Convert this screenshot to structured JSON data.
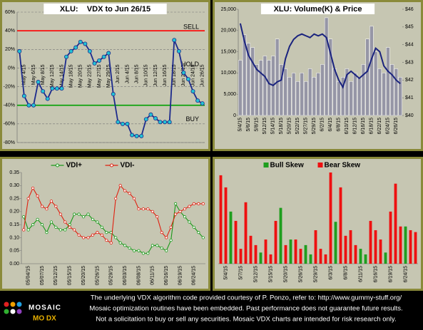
{
  "chart_data": [
    {
      "type": "line",
      "title": "XLU:    VDX to Jun 26/15",
      "categories": [
        null,
        "May 4/15",
        null,
        "May 6/15",
        null,
        "May 8/15",
        null,
        "May 12/15",
        null,
        "May 14/15",
        null,
        "May 18/15",
        null,
        "May 20/15",
        null,
        "May 22/15",
        null,
        "May 27/15",
        null,
        "May 29/15",
        null,
        "Jun 2/15",
        null,
        "Jun 4/15",
        null,
        "Jun 8/15",
        null,
        "Jun 10/15",
        null,
        "Jun 12/15",
        null,
        "Jun 16/15",
        null,
        "Jun 18/15",
        null,
        "Jun 22/15",
        null,
        "Jun 24/15",
        null,
        "Jun 26/15"
      ],
      "series": [
        {
          "name": "VDX",
          "color": "#1c2a8c",
          "marker_color": "#22c4d4",
          "values": [
            18,
            -30,
            -40,
            -40,
            -15,
            -25,
            -33,
            -22,
            -22,
            -22,
            12,
            18,
            22,
            28,
            26,
            18,
            5,
            8,
            12,
            16,
            -28,
            -58,
            -60,
            -60,
            -72,
            -73,
            -73,
            -55,
            -50,
            -54,
            -58,
            -58,
            -58,
            30,
            18,
            -5,
            -12,
            -25,
            -35,
            -38
          ]
        }
      ],
      "ylim": [
        -80,
        60
      ],
      "yticks": [
        {
          "value": -80,
          "label": "-80%"
        },
        {
          "value": -60,
          "label": "-60%"
        },
        {
          "value": -40,
          "label": "-40%"
        },
        {
          "value": -20,
          "label": "-20%"
        },
        {
          "value": 0,
          "label": "0%"
        },
        {
          "value": 20,
          "label": "20%"
        },
        {
          "value": 40,
          "label": "40%"
        },
        {
          "value": 60,
          "label": "60%"
        }
      ],
      "grid": true,
      "annotations": [
        {
          "text": "SELL",
          "value": 40,
          "color": "#ff0000"
        },
        {
          "text": "HOLD",
          "value": 0
        },
        {
          "text": "BUY",
          "value": -40,
          "color": "#00a000"
        }
      ]
    },
    {
      "type": "bar",
      "title": "XLU: Volume(K) & Price",
      "categories": [
        "5/4/15",
        null,
        "5/6/15",
        null,
        "5/8/15",
        null,
        "5/12/15",
        null,
        "5/14/15",
        null,
        "5/18/15",
        null,
        "5/20/15",
        null,
        "5/22/15",
        null,
        "5/27/15",
        null,
        "5/29/15",
        null,
        "6/2/15",
        null,
        "6/4/15",
        null,
        "6/8/15",
        null,
        "6/10/15",
        null,
        "6/12/15",
        null,
        "6/16/15",
        null,
        "6/18/15",
        null,
        "6/22/15",
        null,
        "6/24/15",
        null,
        "6/26/15",
        null
      ],
      "series": [
        {
          "name": "Volume(K)",
          "color": "#9696a6",
          "values": [
            13000,
            19000,
            17000,
            16000,
            12000,
            13000,
            14000,
            13000,
            14000,
            18000,
            12000,
            11000,
            9000,
            10000,
            8000,
            10000,
            8000,
            11000,
            9000,
            10000,
            12000,
            23000,
            18000,
            11000,
            8000,
            9000,
            11000,
            8000,
            10000,
            9000,
            12000,
            18000,
            21000,
            15000,
            11000,
            10000,
            16000,
            12000,
            11000,
            9000
          ]
        },
        {
          "name": "Price",
          "type": "line",
          "axis": "y2",
          "color": "#1a237e",
          "values": [
            45.2,
            44.2,
            43.4,
            43.0,
            42.6,
            42.4,
            42.2,
            41.8,
            41.7,
            41.9,
            42.0,
            43.2,
            43.9,
            44.3,
            44.5,
            44.6,
            44.5,
            44.4,
            44.6,
            44.5,
            44.6,
            44.4,
            43.5,
            42.6,
            42.0,
            41.6,
            42.3,
            42.5,
            42.3,
            42.1,
            42.3,
            42.5,
            43.2,
            43.8,
            43.6,
            42.8,
            42.5,
            42.3,
            42.0,
            41.8
          ]
        }
      ],
      "ylim": [
        0,
        25000
      ],
      "yticks": [
        0,
        {
          "value": 5000,
          "label": "5,000"
        },
        {
          "value": 10000,
          "label": "10,000"
        },
        {
          "value": 15000,
          "label": "15,000"
        },
        {
          "value": 20000,
          "label": "20,000"
        },
        {
          "value": 25000,
          "label": "25,000"
        }
      ],
      "y2lim": [
        40,
        46
      ],
      "y2ticks": [
        {
          "value": 40,
          "label": "$40"
        },
        {
          "value": 41,
          "label": "$41"
        },
        {
          "value": 42,
          "label": "$42"
        },
        {
          "value": 43,
          "label": "$43"
        },
        {
          "value": 44,
          "label": "$44"
        },
        {
          "value": 45,
          "label": "$45"
        },
        {
          "value": 46,
          "label": "$46"
        }
      ]
    },
    {
      "type": "line",
      "categories": [
        null,
        "05/04/15",
        null,
        null,
        "05/07/15",
        null,
        null,
        "05/12/15",
        null,
        null,
        "05/15/15",
        null,
        null,
        "05/20/15",
        null,
        null,
        "05/26/15",
        null,
        null,
        "05/29/15",
        null,
        null,
        "06/03/15",
        null,
        null,
        "06/08/15",
        null,
        null,
        "06/11/15",
        null,
        null,
        "06/16/15",
        null,
        null,
        "06/19/15",
        null,
        null,
        "06/24/15",
        null,
        null
      ],
      "series": [
        {
          "name": "VDI+",
          "color": "#1a9a1a",
          "values": [
            0.18,
            0.13,
            0.15,
            0.17,
            0.15,
            0.12,
            0.16,
            0.14,
            0.13,
            0.13,
            0.15,
            0.19,
            0.19,
            0.18,
            0.19,
            0.17,
            0.16,
            0.14,
            0.12,
            0.12,
            0.1,
            0.08,
            0.07,
            0.06,
            0.05,
            0.05,
            0.04,
            0.04,
            0.07,
            0.07,
            0.06,
            0.05,
            0.09,
            0.23,
            0.2,
            0.18,
            0.16,
            0.14,
            0.12,
            0.1
          ]
        },
        {
          "name": "VDI-",
          "color": "#e02010",
          "values": [
            0.13,
            0.25,
            0.29,
            0.26,
            0.22,
            0.21,
            0.24,
            0.22,
            0.19,
            0.16,
            0.14,
            0.13,
            0.11,
            0.1,
            0.1,
            0.11,
            0.12,
            0.11,
            0.09,
            0.08,
            0.25,
            0.3,
            0.28,
            0.27,
            0.25,
            0.21,
            0.21,
            0.21,
            0.2,
            0.18,
            0.12,
            0.1,
            0.14,
            0.19,
            0.2,
            0.21,
            0.22,
            0.23,
            0.23,
            0.23
          ]
        }
      ],
      "ylim": [
        0,
        0.35
      ],
      "yticks": [
        {
          "value": 0,
          "label": "0.00"
        },
        0.05,
        {
          "value": 0.1,
          "label": "0.10"
        },
        0.15,
        {
          "value": 0.2,
          "label": "0.20"
        },
        0.25,
        {
          "value": 0.3,
          "label": "0.30"
        },
        0.35
      ],
      "legend": "top"
    },
    {
      "type": "bar",
      "categories": [
        null,
        "5/4/15",
        null,
        null,
        "5/7/15",
        null,
        null,
        "5/12/15",
        null,
        null,
        "5/15/15",
        null,
        null,
        "5/20/15",
        null,
        null,
        "5/26/15",
        null,
        null,
        "5/29/15",
        null,
        null,
        "6/3/15",
        null,
        null,
        "6/8/15",
        null,
        null,
        "6/11/15",
        null,
        null,
        "6/16/15",
        null,
        null,
        "6/19/15",
        null,
        null,
        "6/24/15",
        null,
        null
      ],
      "series": [
        {
          "name": "Bull Skew",
          "color": "#1e9e1e",
          "values": [
            null,
            null,
            56,
            null,
            null,
            null,
            null,
            null,
            12,
            null,
            null,
            null,
            60,
            null,
            26,
            null,
            null,
            20,
            10,
            null,
            null,
            null,
            null,
            45,
            null,
            null,
            null,
            null,
            16,
            10,
            null,
            null,
            null,
            12,
            null,
            null,
            null,
            40,
            null,
            null
          ]
        },
        {
          "name": "Bear Skew",
          "color": "#ee1010",
          "values": [
            95,
            82,
            null,
            46,
            16,
            66,
            30,
            20,
            null,
            26,
            10,
            46,
            null,
            20,
            null,
            26,
            16,
            null,
            null,
            36,
            16,
            10,
            98,
            null,
            82,
            30,
            36,
            20,
            null,
            null,
            46,
            36,
            26,
            null,
            56,
            86,
            40,
            null,
            36,
            34
          ]
        }
      ],
      "legend": "top"
    }
  ],
  "footer": {
    "lines": [
      "The underlying VDX algorithm code provided courtesy of P. Ponzo, refer to:  http://www.gummy-stuff.org/",
      "Mosaic optimization routines have been embedded.    Past performance does not guarantee future results.",
      "Not a solicitation to buy or sell any securities.  Mosaic VDX charts are intended for risk research only."
    ],
    "logo": "MOSAIC",
    "logo_sub": "MO DX"
  }
}
